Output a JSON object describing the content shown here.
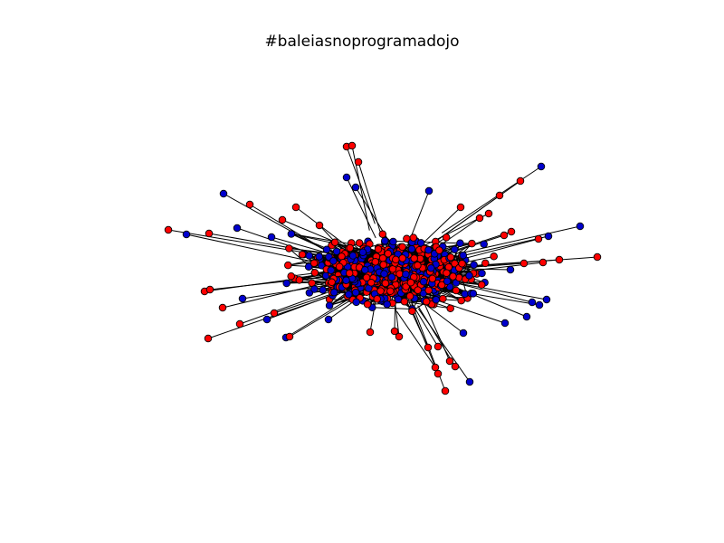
{
  "figure": {
    "title": "#baleiasnoprogramadojo"
  },
  "graph": {
    "node_colors": {
      "group_a": "#ff0000",
      "group_b": "#0000cc"
    },
    "edge_color": "#000000",
    "node_outline": "#000000"
  }
}
